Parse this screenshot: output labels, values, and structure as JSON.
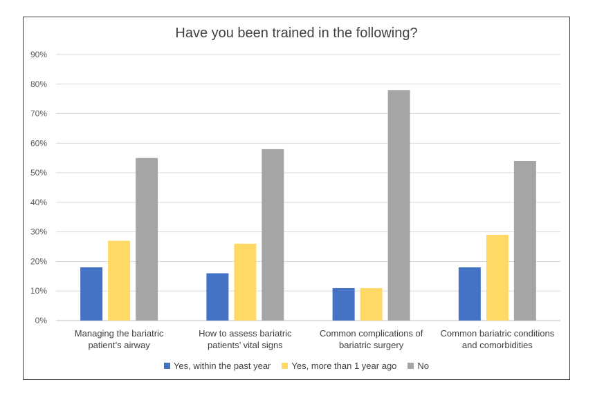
{
  "chart_data": {
    "type": "bar",
    "title": "Have you been trained in the following?",
    "categories": [
      [
        "Managing the bariatric",
        "patient’s airway"
      ],
      [
        "How to assess bariatric",
        "patients’ vital signs"
      ],
      [
        "Common complications of",
        "bariatric surgery"
      ],
      [
        "Common bariatric conditions",
        "and comorbidities"
      ]
    ],
    "series": [
      {
        "name": "Yes, within the past year",
        "color": "#4472c4",
        "values": [
          18,
          16,
          11,
          18
        ]
      },
      {
        "name": "Yes, more than 1 year ago",
        "color": "#ffd966",
        "values": [
          27,
          26,
          11,
          29
        ]
      },
      {
        "name": "No",
        "color": "#a5a5a5",
        "values": [
          55,
          58,
          78,
          54
        ]
      }
    ],
    "ylim": [
      0,
      90
    ],
    "yticks": [
      "0%",
      "10%",
      "20%",
      "30%",
      "40%",
      "50%",
      "60%",
      "70%",
      "80%",
      "90%"
    ],
    "grid": true,
    "legend_position": "bottom"
  }
}
